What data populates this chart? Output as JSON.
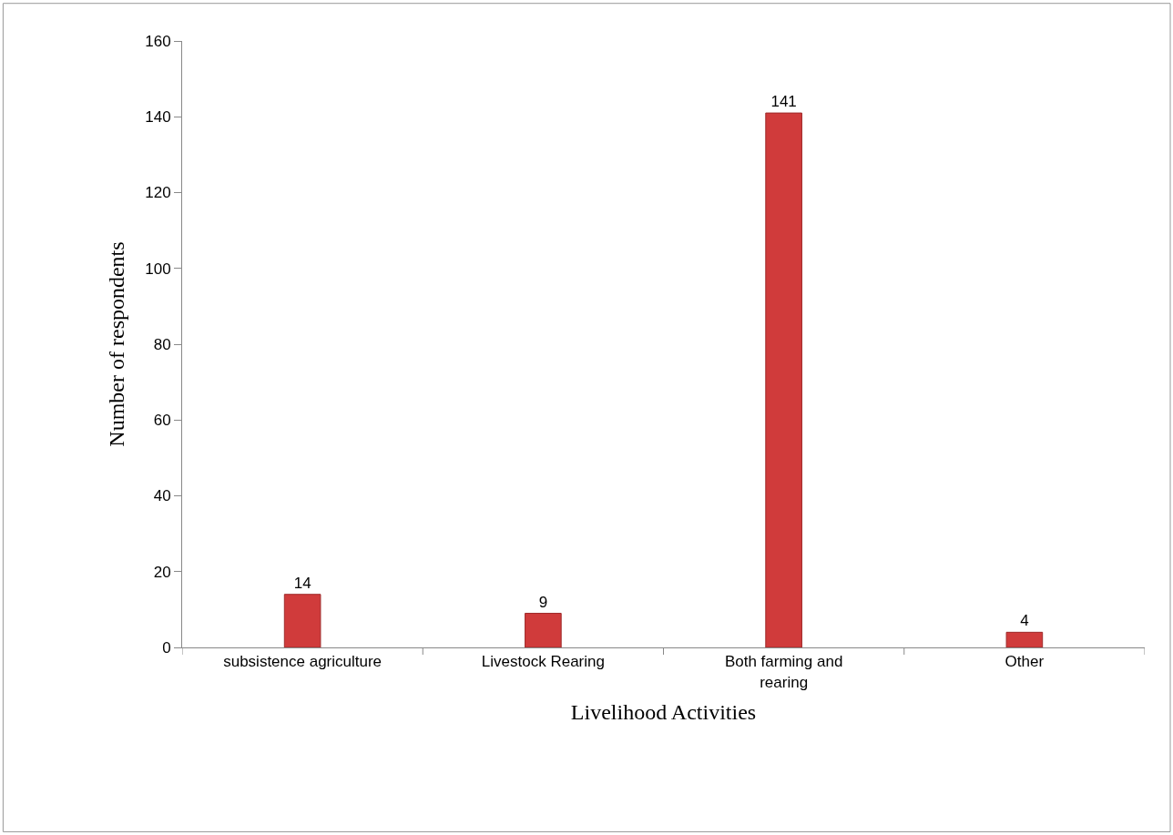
{
  "chart_data": {
    "type": "bar",
    "xlabel": "Livelihood Activities",
    "ylabel": "Number of respondents",
    "categories": [
      "subsistence agriculture",
      "Livestock Rearing",
      "Both farming and\nrearing",
      "Other"
    ],
    "values": [
      14,
      9,
      141,
      4
    ],
    "color": "#d03b3b",
    "ylim": [
      0,
      160
    ],
    "yticks": [
      0,
      20,
      40,
      60,
      80,
      100,
      120,
      140,
      160
    ],
    "data_labels": true
  }
}
